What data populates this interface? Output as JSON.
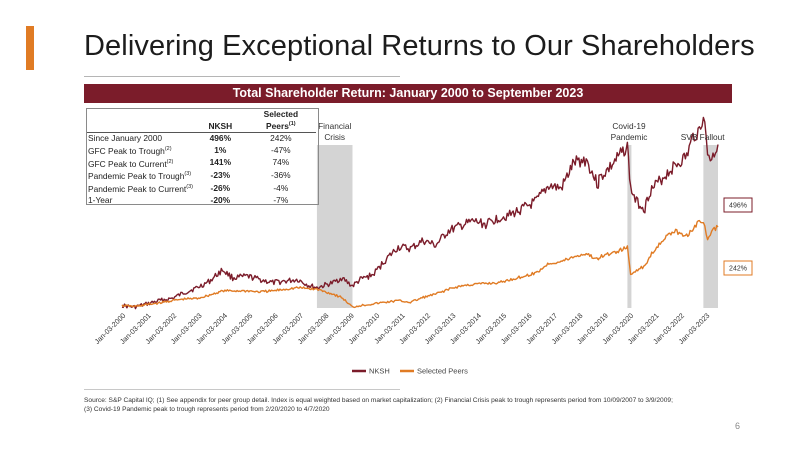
{
  "header": {
    "title": "Delivering Exceptional Returns to Our Shareholders"
  },
  "banner": {
    "text": "Total Shareholder Return: January 2000 to September 2023"
  },
  "table": {
    "col_nksh": "NKSH",
    "col_peers_main": "Selected",
    "col_peers_sub": "Peers",
    "col_peers_sup": "(1)",
    "rows": [
      {
        "label": "Since January 2000",
        "sup": "",
        "nksh": "496%",
        "peers": "242%"
      },
      {
        "label": "GFC Peak to Trough",
        "sup": "(2)",
        "nksh": "1%",
        "peers": "-47%"
      },
      {
        "label": "GFC Peak to Current",
        "sup": "(2)",
        "nksh": "141%",
        "peers": "74%"
      },
      {
        "label": "Pandemic Peak to Trough",
        "sup": "(3)",
        "nksh": "-23%",
        "peers": "-36%"
      },
      {
        "label": "Pandemic Peak to Current",
        "sup": "(3)",
        "nksh": "-26%",
        "peers": "-4%"
      },
      {
        "label": "1-Year",
        "sup": "",
        "nksh": "-20%",
        "peers": "-7%"
      }
    ]
  },
  "annotations": {
    "financial_crisis": [
      "Financial",
      "Crisis"
    ],
    "covid": [
      "Covid-19",
      "Pandemic"
    ],
    "svb": "SVB Fallout"
  },
  "colors": {
    "nksh": "#7b1c2a",
    "peers": "#e07b24",
    "band": "#d4d4d4",
    "accent": "#e07b24",
    "banner": "#7b1c2a"
  },
  "chart_data": {
    "type": "line",
    "x_ticks": [
      "Jan-03-2000",
      "Jan-03-2001",
      "Jan-03-2002",
      "Jan-03-2003",
      "Jan-03-2004",
      "Jan-03-2005",
      "Jan-03-2006",
      "Jan-03-2007",
      "Jan-03-2008",
      "Jan-03-2009",
      "Jan-03-2010",
      "Jan-03-2011",
      "Jan-03-2012",
      "Jan-03-2013",
      "Jan-03-2014",
      "Jan-03-2015",
      "Jan-03-2016",
      "Jan-03-2017",
      "Jan-03-2018",
      "Jan-03-2019",
      "Jan-03-2020",
      "Jan-03-2021",
      "Jan-03-2022",
      "Jan-03-2023"
    ],
    "x_range": [
      "2000-01-03",
      "2023-09-30"
    ],
    "y_range": [
      -20,
      620
    ],
    "shaded_periods": [
      {
        "name": "Financial Crisis",
        "start": "2007-10-09",
        "end": "2009-03-09"
      },
      {
        "name": "Covid-19 Pandemic",
        "start": "2020-02-20",
        "end": "2020-04-07"
      },
      {
        "name": "SVB Fallout",
        "start": "2023-03-01",
        "end": "2023-09-30"
      }
    ],
    "series": [
      {
        "name": "NKSH",
        "end_label": "496%",
        "points": [
          [
            "2000-01-03",
            0
          ],
          [
            "2000-07-01",
            -5
          ],
          [
            "2001-01-03",
            5
          ],
          [
            "2001-07-01",
            15
          ],
          [
            "2002-01-03",
            22
          ],
          [
            "2002-07-01",
            40
          ],
          [
            "2003-01-03",
            55
          ],
          [
            "2003-07-01",
            75
          ],
          [
            "2004-01-03",
            110
          ],
          [
            "2004-06-01",
            85
          ],
          [
            "2005-01-03",
            90
          ],
          [
            "2005-07-01",
            80
          ],
          [
            "2006-01-03",
            70
          ],
          [
            "2006-07-01",
            75
          ],
          [
            "2007-01-03",
            80
          ],
          [
            "2007-07-01",
            60
          ],
          [
            "2007-10-09",
            55
          ],
          [
            "2008-06-01",
            70
          ],
          [
            "2008-10-01",
            85
          ],
          [
            "2009-03-09",
            60
          ],
          [
            "2009-07-01",
            80
          ],
          [
            "2010-01-03",
            95
          ],
          [
            "2010-07-01",
            140
          ],
          [
            "2011-01-03",
            180
          ],
          [
            "2011-07-01",
            175
          ],
          [
            "2012-01-03",
            200
          ],
          [
            "2012-07-01",
            185
          ],
          [
            "2013-01-03",
            230
          ],
          [
            "2013-07-01",
            245
          ],
          [
            "2014-01-03",
            260
          ],
          [
            "2014-07-01",
            250
          ],
          [
            "2015-01-03",
            270
          ],
          [
            "2015-07-01",
            280
          ],
          [
            "2016-01-03",
            300
          ],
          [
            "2016-07-01",
            320
          ],
          [
            "2017-01-03",
            370
          ],
          [
            "2017-07-01",
            360
          ],
          [
            "2018-01-03",
            440
          ],
          [
            "2018-07-01",
            450
          ],
          [
            "2018-12-20",
            370
          ],
          [
            "2019-01-03",
            390
          ],
          [
            "2019-07-01",
            430
          ],
          [
            "2020-01-03",
            480
          ],
          [
            "2020-02-20",
            490
          ],
          [
            "2020-04-07",
            360
          ],
          [
            "2020-07-01",
            320
          ],
          [
            "2020-11-01",
            300
          ],
          [
            "2021-01-03",
            350
          ],
          [
            "2021-07-01",
            390
          ],
          [
            "2022-01-03",
            430
          ],
          [
            "2022-07-01",
            460
          ],
          [
            "2022-10-01",
            520
          ],
          [
            "2023-01-03",
            540
          ],
          [
            "2023-03-01",
            590
          ],
          [
            "2023-05-01",
            470
          ],
          [
            "2023-07-01",
            450
          ],
          [
            "2023-09-30",
            496
          ]
        ]
      },
      {
        "name": "Selected Peers",
        "end_label": "242%",
        "points": [
          [
            "2000-01-03",
            0
          ],
          [
            "2000-07-01",
            -3
          ],
          [
            "2001-01-03",
            3
          ],
          [
            "2001-07-01",
            8
          ],
          [
            "2002-01-03",
            15
          ],
          [
            "2002-07-01",
            20
          ],
          [
            "2003-01-03",
            22
          ],
          [
            "2003-07-01",
            32
          ],
          [
            "2004-01-03",
            45
          ],
          [
            "2004-07-01",
            45
          ],
          [
            "2005-01-03",
            45
          ],
          [
            "2005-07-01",
            42
          ],
          [
            "2006-01-03",
            45
          ],
          [
            "2006-07-01",
            50
          ],
          [
            "2007-01-03",
            55
          ],
          [
            "2007-10-09",
            50
          ],
          [
            "2008-06-01",
            35
          ],
          [
            "2008-10-01",
            25
          ],
          [
            "2009-03-09",
            -5
          ],
          [
            "2009-07-01",
            0
          ],
          [
            "2010-01-03",
            5
          ],
          [
            "2010-07-01",
            10
          ],
          [
            "2011-01-03",
            15
          ],
          [
            "2011-07-01",
            10
          ],
          [
            "2012-01-03",
            25
          ],
          [
            "2012-07-01",
            35
          ],
          [
            "2013-01-03",
            50
          ],
          [
            "2013-07-01",
            60
          ],
          [
            "2014-01-03",
            65
          ],
          [
            "2014-07-01",
            68
          ],
          [
            "2015-01-03",
            70
          ],
          [
            "2015-07-01",
            80
          ],
          [
            "2016-01-03",
            90
          ],
          [
            "2016-07-01",
            100
          ],
          [
            "2017-01-03",
            130
          ],
          [
            "2017-07-01",
            135
          ],
          [
            "2018-01-03",
            150
          ],
          [
            "2018-07-01",
            160
          ],
          [
            "2018-12-20",
            140
          ],
          [
            "2019-01-03",
            150
          ],
          [
            "2019-07-01",
            160
          ],
          [
            "2020-01-03",
            175
          ],
          [
            "2020-02-20",
            178
          ],
          [
            "2020-04-07",
            95
          ],
          [
            "2020-07-01",
            110
          ],
          [
            "2020-11-01",
            120
          ],
          [
            "2021-01-03",
            150
          ],
          [
            "2021-07-01",
            200
          ],
          [
            "2022-01-03",
            230
          ],
          [
            "2022-07-01",
            215
          ],
          [
            "2023-01-03",
            260
          ],
          [
            "2023-03-01",
            258
          ],
          [
            "2023-05-01",
            200
          ],
          [
            "2023-07-01",
            230
          ],
          [
            "2023-09-30",
            242
          ]
        ]
      }
    ]
  },
  "legend": {
    "nksh": "NKSH",
    "peers": "Selected Peers"
  },
  "footnote": {
    "line1": "Source: S&P Capital IQ; (1) See appendix for peer group detail. Index is equal weighted based on market capitalization; (2) Financial Crisis peak to trough represents period from 10/09/2007 to 3/9/2009;",
    "line2": "(3) Covid-19 Pandemic peak to trough represents period from 2/20/2020 to 4/7/2020"
  },
  "page": {
    "number": "6"
  }
}
